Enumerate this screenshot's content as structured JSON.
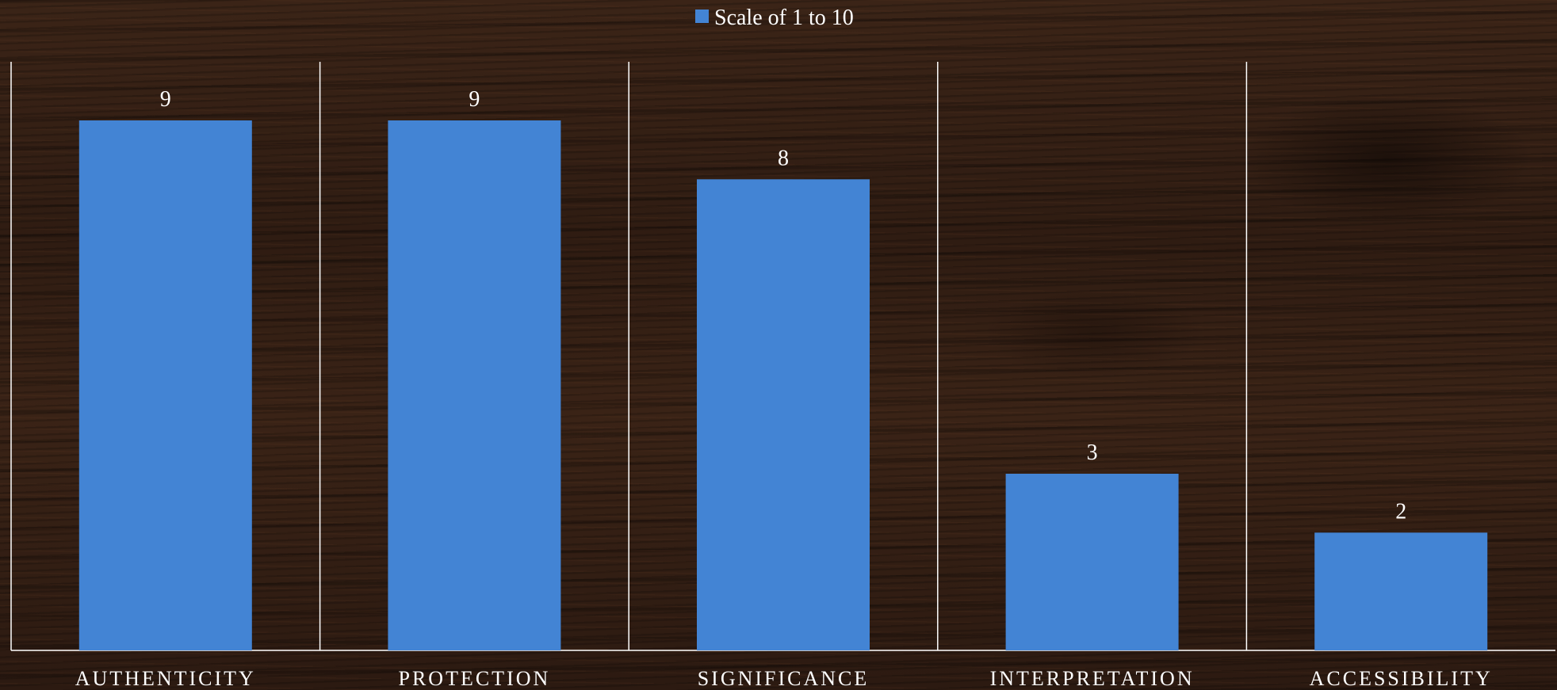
{
  "chart_data": {
    "type": "bar",
    "categories": [
      "AUTHENTICITY",
      "PROTECTION",
      "SIGNIFICANCE",
      "INTERPRETATION",
      "ACCESSIBILITY"
    ],
    "series": [
      {
        "name": "Scale of 1 to 10",
        "values": [
          9,
          9,
          8,
          3,
          2
        ]
      }
    ],
    "ylim": [
      0,
      10
    ],
    "grid": "vertical category separators",
    "legend": "top-center",
    "data_labels": true,
    "colors": {
      "bar": "#4384d4",
      "text": "#ffffff",
      "axis": "#ffffff"
    }
  }
}
